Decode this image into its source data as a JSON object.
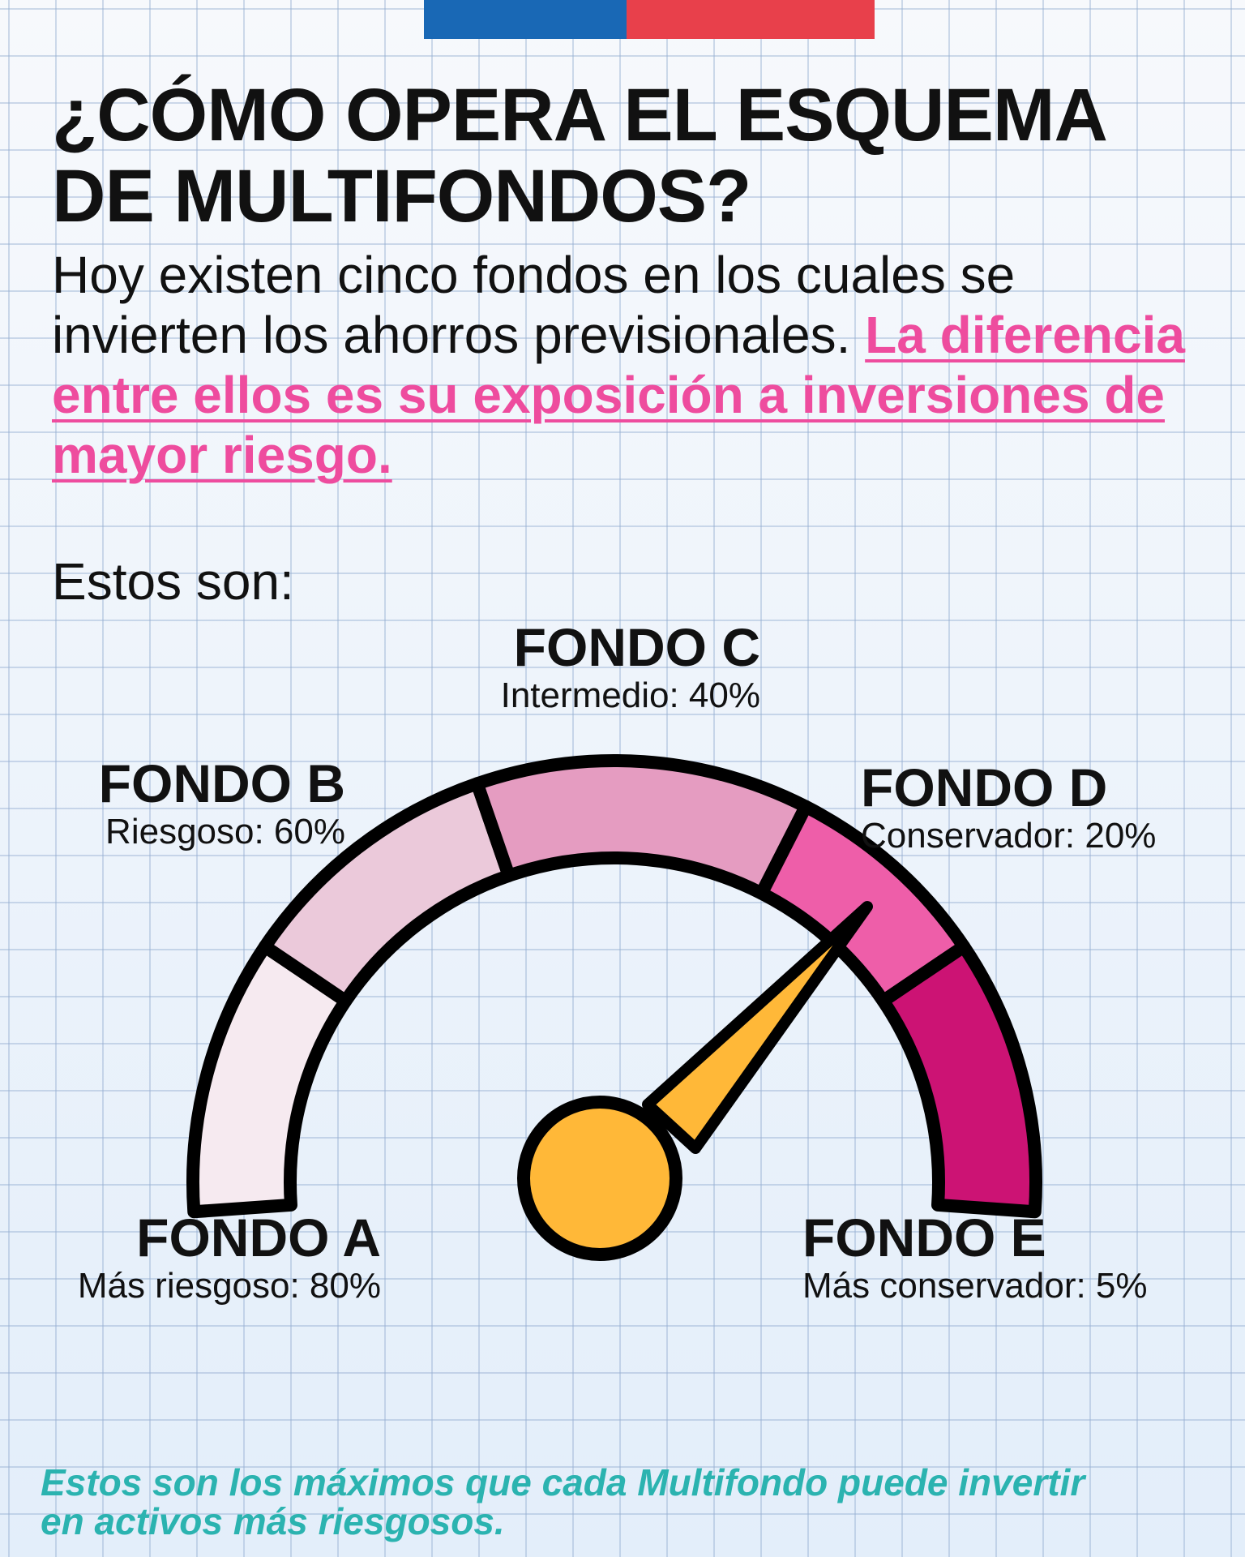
{
  "header": {
    "title_line1": "¿CÓMO OPERA EL ESQUEMA",
    "title_line2": "DE MULTIFONDOS?",
    "intro_plain": "Hoy existen cinco fondos en los cuales se invierten los ahorros previsionales.",
    "intro_highlight": "La diferencia entre ellos es su exposición a inversiones de mayor riesgo."
  },
  "lead": "Estos son:",
  "funds": {
    "a": {
      "name": "FONDO A",
      "desc": "Más riesgoso: 80%",
      "max_risky_pct": 80,
      "color": "#f6eaf0"
    },
    "b": {
      "name": "FONDO B",
      "desc": "Riesgoso: 60%",
      "max_risky_pct": 60,
      "color": "#ebc9da"
    },
    "c": {
      "name": "FONDO C",
      "desc": "Intermedio: 40%",
      "max_risky_pct": 40,
      "color": "#e59cc1"
    },
    "d": {
      "name": "FONDO D",
      "desc": "Conservador: 20%",
      "max_risky_pct": 20,
      "color": "#ee5ea9"
    },
    "e": {
      "name": "FONDO E",
      "desc": "Más conservador: 5%",
      "max_risky_pct": 5,
      "color": "#cc1374"
    }
  },
  "gauge": {
    "needle_color": "#ffb838",
    "pointing_to": "FONDO D"
  },
  "note": "Estos son los máximos que cada Multifondo puede invertir en activos más riesgosos.",
  "colors": {
    "flag_blue": "#1968b5",
    "flag_red": "#e8404b",
    "highlight": "#ee4c9e",
    "note": "#2bb3b0"
  }
}
